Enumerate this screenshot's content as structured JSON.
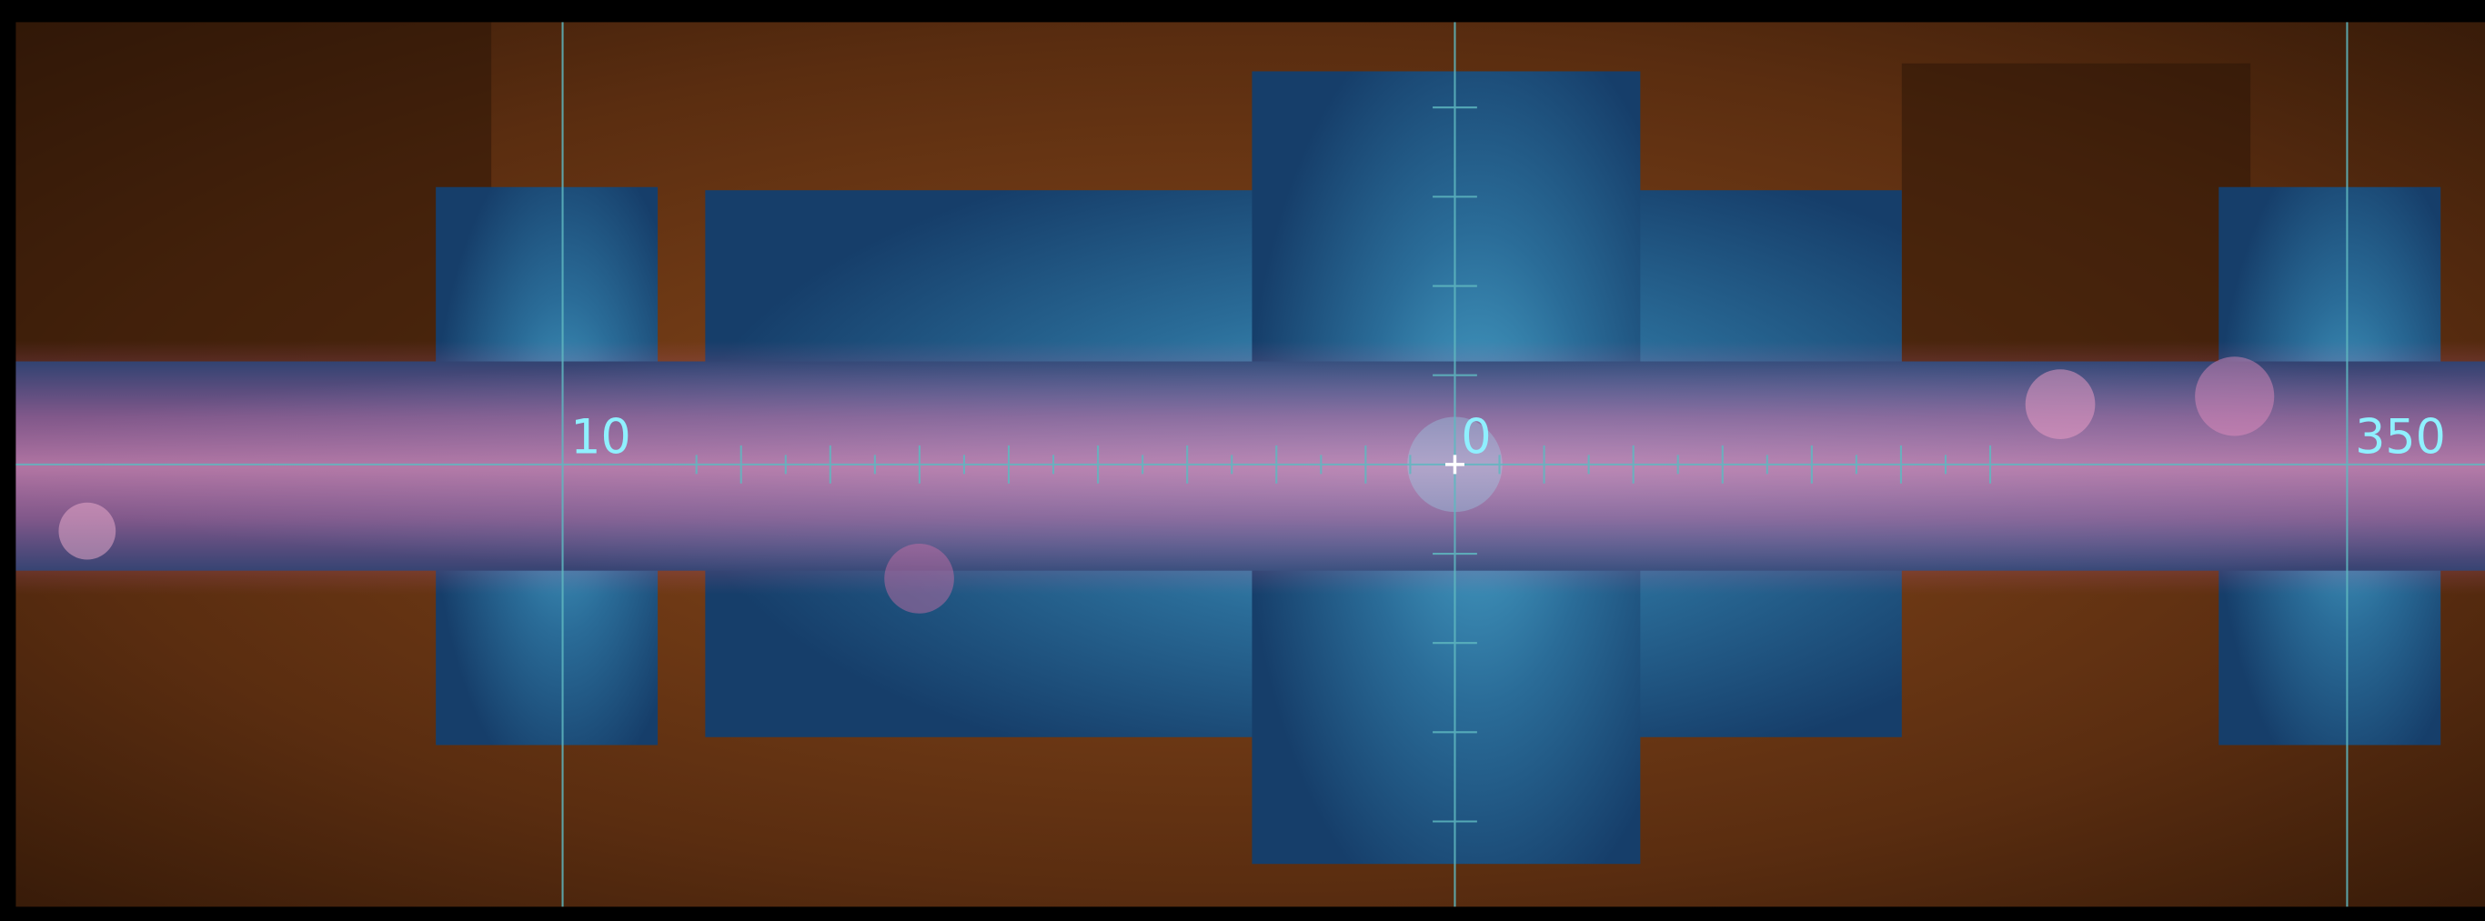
{
  "grid_labels": [
    "10",
    "0",
    "350"
  ]
}
